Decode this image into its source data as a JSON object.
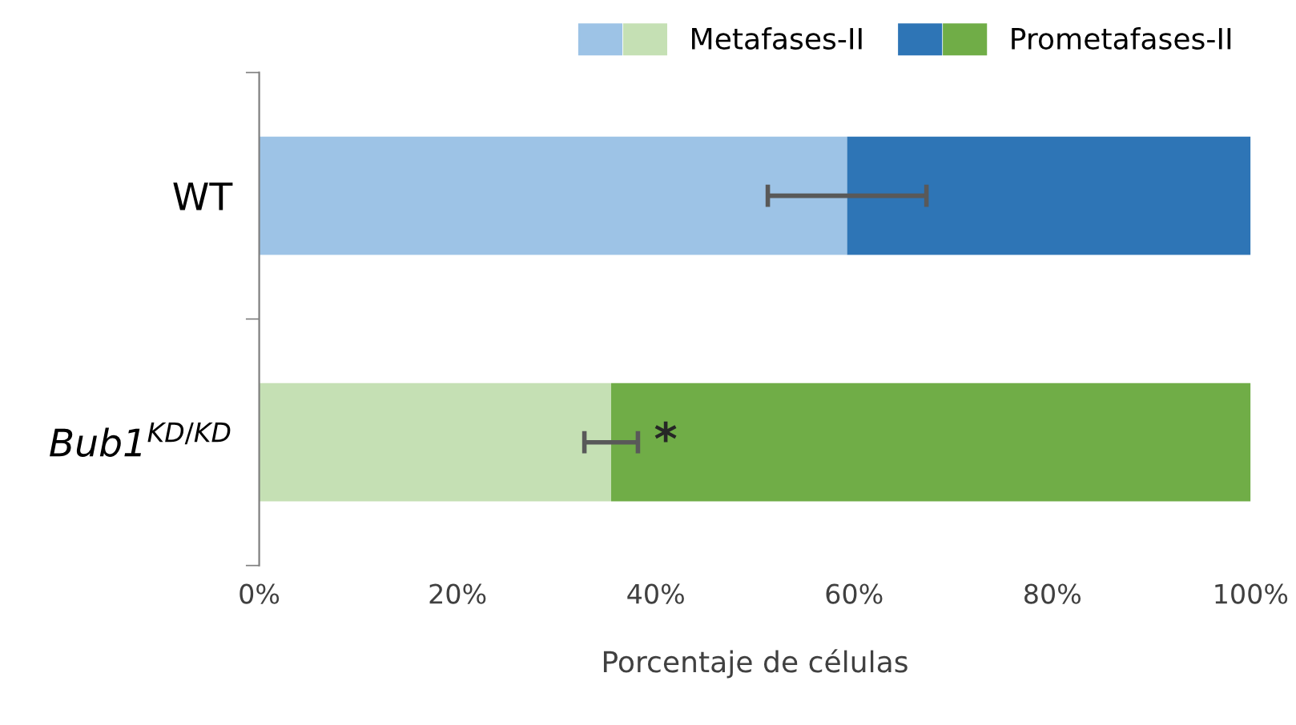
{
  "chart_data": {
    "type": "bar",
    "orientation": "horizontal",
    "stacked": true,
    "xlabel": "Porcentaje de células",
    "categories": [
      "WT",
      "Bub1$^{KD/KD}$"
    ],
    "series": [
      {
        "name": "Metafases-II",
        "colors": [
          "#9dc3e6",
          "#c5e0b4"
        ],
        "values": [
          59.3,
          35.5
        ],
        "errors": [
          8,
          2.7
        ]
      },
      {
        "name": "Prometafases-II",
        "colors": [
          "#2e75b6",
          "#70ad47"
        ],
        "values": [
          40.7,
          64.5
        ]
      }
    ],
    "xlim": [
      0,
      100
    ],
    "xticks": [
      {
        "value": 0,
        "label": "0%"
      },
      {
        "value": 20,
        "label": "20%"
      },
      {
        "value": 40,
        "label": "40%"
      },
      {
        "value": 60,
        "label": "60%"
      },
      {
        "value": 80,
        "label": "80%"
      },
      {
        "value": 100,
        "label": "100%"
      }
    ],
    "annotations": [
      "*"
    ],
    "legend": "top right",
    "grid": false
  }
}
